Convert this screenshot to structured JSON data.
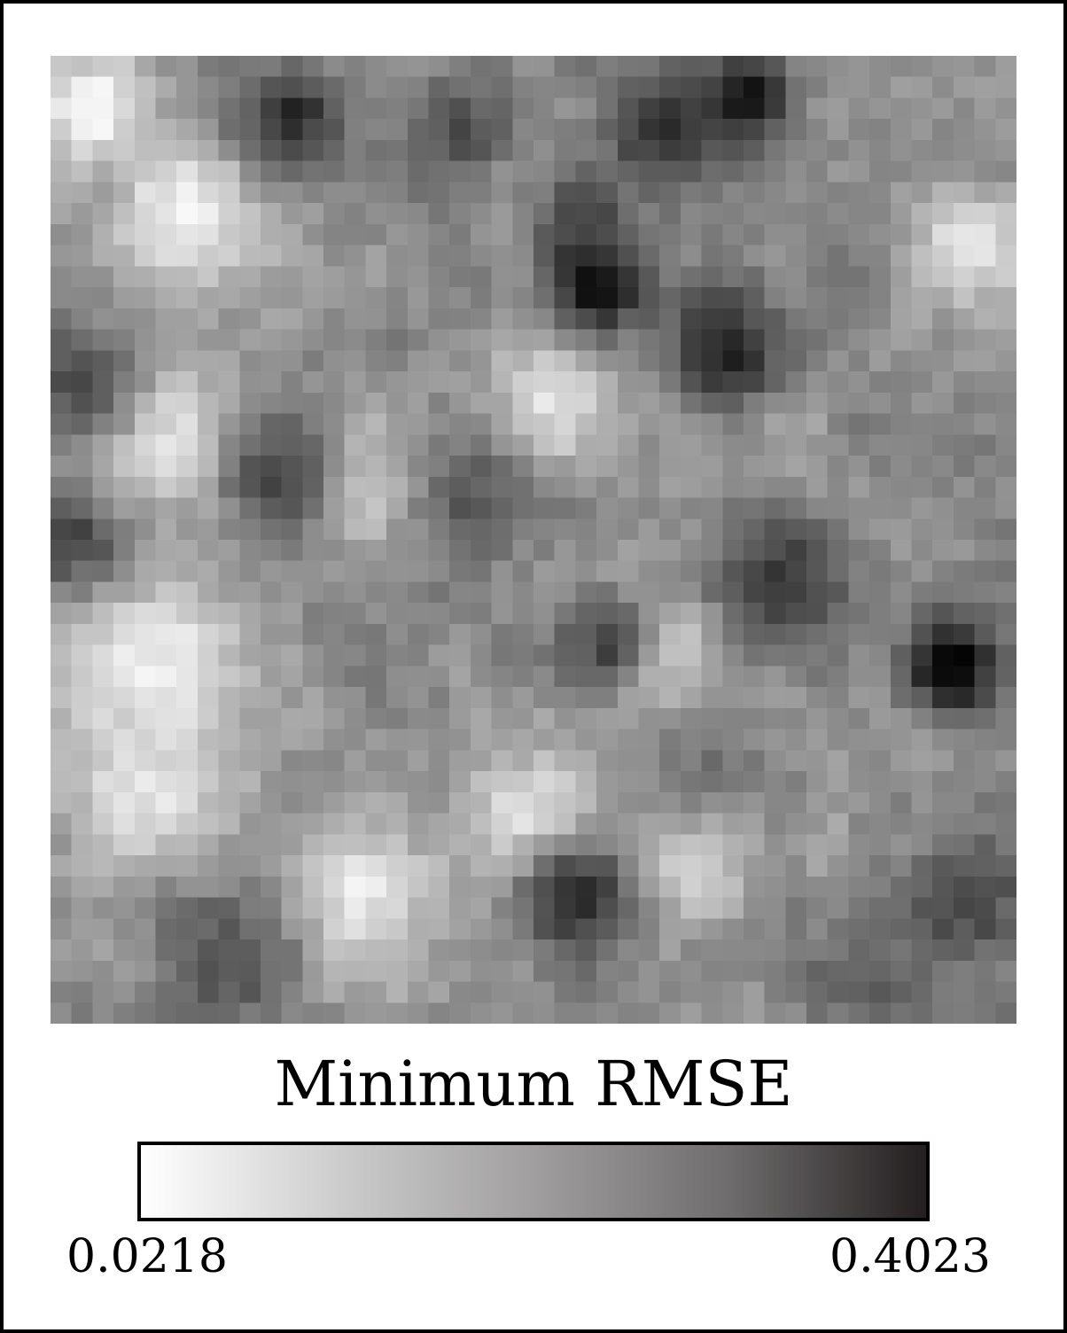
{
  "chart_data": {
    "type": "heatmap",
    "rows": 46,
    "cols": 46,
    "colorbar": {
      "title": "Minimum RMSE",
      "min": 0.0218,
      "max": 0.4023,
      "min_label": "0.0218",
      "max_label": "0.4023",
      "colormap": "grayscale, white (min) to near-black (max)",
      "orientation": "horizontal",
      "placement": "below"
    },
    "xlabel": "",
    "ylabel": "",
    "seed": 7,
    "dark_blobs": [
      {
        "r": 1.5,
        "c": 32.5,
        "v": 0.38,
        "s": 1.6
      },
      {
        "r": 2.5,
        "c": 11.0,
        "v": 0.34,
        "s": 1.8
      },
      {
        "r": 3.0,
        "c": 28.5,
        "v": 0.34,
        "s": 1.8
      },
      {
        "r": 3.0,
        "c": 19.0,
        "v": 0.29,
        "s": 1.6
      },
      {
        "r": 7.5,
        "c": 25.0,
        "v": 0.3,
        "s": 1.8
      },
      {
        "r": 10.5,
        "c": 25.5,
        "v": 0.4,
        "s": 1.5
      },
      {
        "r": 13.5,
        "c": 31.5,
        "v": 0.35,
        "s": 2.0
      },
      {
        "r": 15.0,
        "c": 1.0,
        "v": 0.29,
        "s": 2.0
      },
      {
        "r": 19.5,
        "c": 10.5,
        "v": 0.3,
        "s": 2.2
      },
      {
        "r": 20.5,
        "c": 19.5,
        "v": 0.27,
        "s": 2.0
      },
      {
        "r": 22.5,
        "c": 0.5,
        "v": 0.3,
        "s": 1.7
      },
      {
        "r": 24.5,
        "c": 34.5,
        "v": 0.32,
        "s": 2.2
      },
      {
        "r": 27.5,
        "c": 26.0,
        "v": 0.3,
        "s": 1.8
      },
      {
        "r": 28.5,
        "c": 42.5,
        "v": 0.4,
        "s": 1.6
      },
      {
        "r": 33.0,
        "c": 31.0,
        "v": 0.23,
        "s": 2.0
      },
      {
        "r": 39.5,
        "c": 24.5,
        "v": 0.34,
        "s": 2.0
      },
      {
        "r": 40.0,
        "c": 43.0,
        "v": 0.29,
        "s": 2.5
      },
      {
        "r": 42.5,
        "c": 8.0,
        "v": 0.28,
        "s": 2.5
      },
      {
        "r": 43.5,
        "c": 38.5,
        "v": 0.27,
        "s": 2.0
      }
    ],
    "light_blobs": [
      {
        "r": 2.0,
        "c": 1.5,
        "v": 0.03,
        "s": 2.0
      },
      {
        "r": 7.0,
        "c": 6.0,
        "v": 0.04,
        "s": 2.5
      },
      {
        "r": 17.5,
        "c": 5.5,
        "v": 0.05,
        "s": 2.5
      },
      {
        "r": 20.0,
        "c": 14.0,
        "v": 0.05,
        "s": 2.0
      },
      {
        "r": 28.5,
        "c": 4.5,
        "v": 0.04,
        "s": 3.0
      },
      {
        "r": 28.0,
        "c": 28.5,
        "v": 0.05,
        "s": 2.0
      },
      {
        "r": 34.5,
        "c": 4.0,
        "v": 0.06,
        "s": 3.0
      },
      {
        "r": 39.5,
        "c": 14.0,
        "v": 0.05,
        "s": 2.5
      },
      {
        "r": 36.0,
        "c": 22.5,
        "v": 0.05,
        "s": 2.5
      },
      {
        "r": 8.5,
        "c": 43.5,
        "v": 0.05,
        "s": 2.0
      },
      {
        "r": 16.0,
        "c": 23.5,
        "v": 0.06,
        "s": 2.0
      },
      {
        "r": 38.0,
        "c": 30.0,
        "v": 0.07,
        "s": 2.0
      }
    ]
  }
}
